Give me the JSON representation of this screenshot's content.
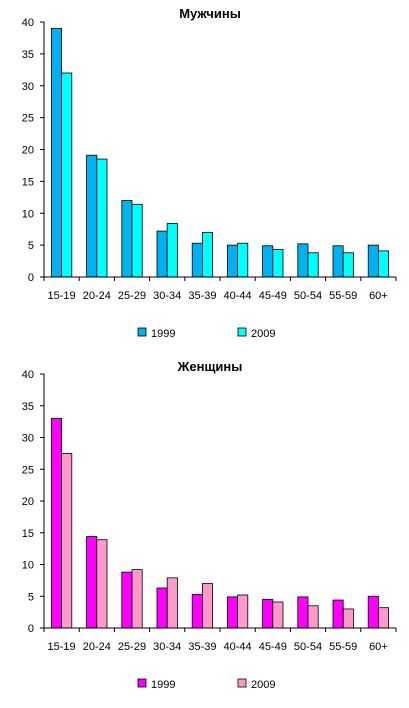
{
  "chart_data": [
    {
      "type": "bar",
      "title": "Мужчины",
      "categories": [
        "15-19",
        "20-24",
        "25-29",
        "30-34",
        "35-39",
        "40-44",
        "45-49",
        "50-54",
        "55-59",
        "60+"
      ],
      "series": [
        {
          "name": "1999",
          "values": [
            39,
            19.1,
            12,
            7.2,
            5.3,
            5,
            4.9,
            5.2,
            4.9,
            5
          ],
          "color": "#00b0f0"
        },
        {
          "name": "2009",
          "values": [
            32,
            18.5,
            11.4,
            8.4,
            7,
            5.3,
            4.3,
            3.8,
            3.8,
            4.1
          ],
          "color": "#00ffff"
        }
      ],
      "ylim": [
        0,
        40
      ],
      "yticks": [
        0,
        5,
        10,
        15,
        20,
        25,
        30,
        35,
        40
      ],
      "legend": "bottom",
      "grid": false
    },
    {
      "type": "bar",
      "title": "Женщины",
      "categories": [
        "15-19",
        "20-24",
        "25-29",
        "30-34",
        "35-39",
        "40-44",
        "45-49",
        "50-54",
        "55-59",
        "60+"
      ],
      "series": [
        {
          "name": "1999",
          "values": [
            33,
            14.4,
            8.8,
            6.3,
            5.3,
            4.9,
            4.5,
            4.9,
            4.4,
            5
          ],
          "color": "#ff00ff"
        },
        {
          "name": "2009",
          "values": [
            27.5,
            13.9,
            9.2,
            7.9,
            7,
            5.2,
            4.1,
            3.5,
            3,
            3.2
          ],
          "color": "#ff99cc"
        }
      ],
      "ylim": [
        0,
        40
      ],
      "yticks": [
        0,
        5,
        10,
        15,
        20,
        25,
        30,
        35,
        40
      ],
      "legend": "bottom",
      "grid": false
    }
  ]
}
